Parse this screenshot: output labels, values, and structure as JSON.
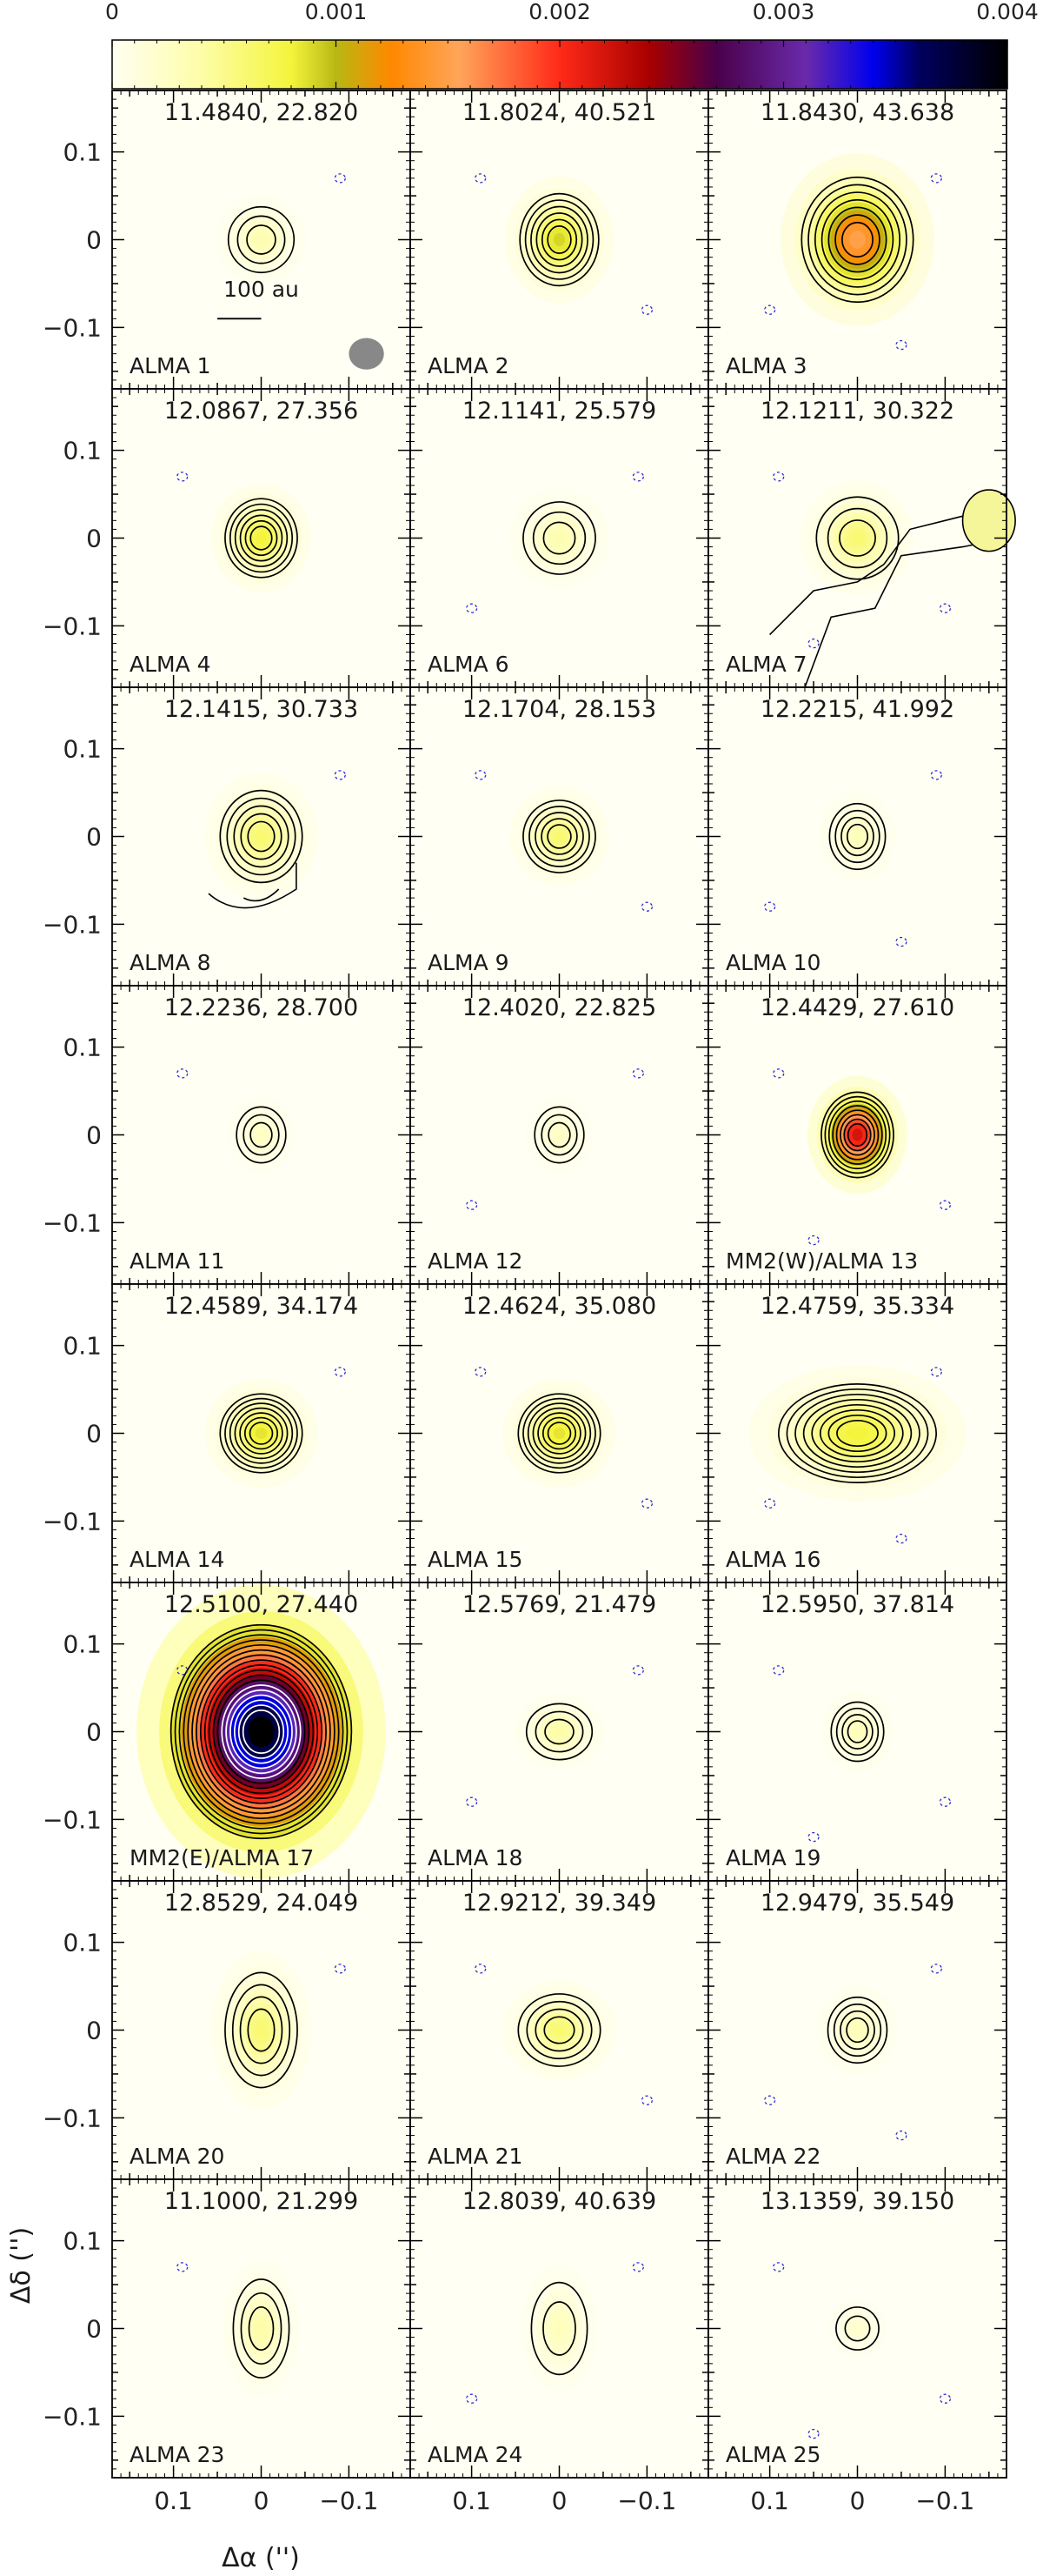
{
  "chart_data": {
    "type": "heatmap",
    "title": "",
    "colorbar": {
      "tick_labels": [
        "0",
        "0.001",
        "0.002",
        "0.003",
        "0.004"
      ],
      "range": [
        0,
        0.004
      ],
      "colors": [
        {
          "v": 0.0,
          "c": "#fffff2"
        },
        {
          "v": 0.0004,
          "c": "#fdfda8"
        },
        {
          "v": 0.0008,
          "c": "#f4f43c"
        },
        {
          "v": 0.001,
          "c": "#b8b814"
        },
        {
          "v": 0.00125,
          "c": "#ff8800"
        },
        {
          "v": 0.00155,
          "c": "#ffa55a"
        },
        {
          "v": 0.002,
          "c": "#ff2a18"
        },
        {
          "v": 0.0024,
          "c": "#a80000"
        },
        {
          "v": 0.0027,
          "c": "#4a004a"
        },
        {
          "v": 0.0031,
          "c": "#6a2aaa"
        },
        {
          "v": 0.0034,
          "c": "#0000ee"
        },
        {
          "v": 0.0036,
          "c": "#000060"
        },
        {
          "v": 0.004,
          "c": "#000000"
        }
      ]
    },
    "xlabel": "Δα ('')",
    "ylabel": "Δδ ('')",
    "xlim": [
      0.17,
      -0.17
    ],
    "ylim": [
      -0.17,
      0.17
    ],
    "x_tick_labels": [
      "0.1",
      "0",
      "−0.1"
    ],
    "x_tick_values": [
      0.1,
      0,
      -0.1
    ],
    "y_tick_labels": [
      "0.1",
      "0",
      "−0.1"
    ],
    "y_tick_values": [
      0.1,
      0,
      -0.1
    ],
    "scale_bar": {
      "label": "100 au",
      "length_arcsec": 0.05
    },
    "panels": [
      {
        "coord": "11.4840, 22.820",
        "label": "ALMA 1",
        "peak": 0.00035,
        "sx": 0.02,
        "sy": 0.02,
        "n_contours": 3,
        "beam": true,
        "scalebar": true
      },
      {
        "coord": "11.8024, 40.521",
        "label": "ALMA 2",
        "peak": 0.0009,
        "sx": 0.024,
        "sy": 0.028,
        "n_contours": 6
      },
      {
        "coord": "11.8430, 43.638",
        "label": "ALMA 3",
        "peak": 0.0015,
        "sx": 0.034,
        "sy": 0.038,
        "n_contours": 7
      },
      {
        "coord": "12.0867, 27.356",
        "label": "ALMA 4",
        "peak": 0.0008,
        "sx": 0.022,
        "sy": 0.024,
        "n_contours": 6
      },
      {
        "coord": "12.1141, 25.579",
        "label": "ALMA 6",
        "peak": 0.00035,
        "sx": 0.022,
        "sy": 0.022,
        "n_contours": 3
      },
      {
        "coord": "12.1211, 30.322",
        "label": "ALMA 7",
        "peak": 0.0006,
        "sx": 0.025,
        "sy": 0.025,
        "n_contours": 3,
        "extended": true
      },
      {
        "coord": "12.1415, 30.733",
        "label": "ALMA 8",
        "peak": 0.0006,
        "sx": 0.025,
        "sy": 0.028,
        "n_contours": 5,
        "arc": true
      },
      {
        "coord": "12.1704, 28.153",
        "label": "ALMA 9",
        "peak": 0.0006,
        "sx": 0.022,
        "sy": 0.022,
        "n_contours": 5
      },
      {
        "coord": "12.2215, 41.992",
        "label": "ALMA 10",
        "peak": 0.0003,
        "sx": 0.017,
        "sy": 0.02,
        "n_contours": 4
      },
      {
        "coord": "12.2236, 28.700",
        "label": "ALMA 11",
        "peak": 0.00025,
        "sx": 0.015,
        "sy": 0.017,
        "n_contours": 3
      },
      {
        "coord": "12.4020, 22.825",
        "label": "ALMA 12",
        "peak": 0.00025,
        "sx": 0.015,
        "sy": 0.017,
        "n_contours": 3
      },
      {
        "coord": "12.4429, 27.610",
        "label": "MM2(W)/ALMA 13",
        "peak": 0.0022,
        "sx": 0.022,
        "sy": 0.026,
        "n_contours": 8
      },
      {
        "coord": "12.4589, 34.174",
        "label": "ALMA 14",
        "peak": 0.00085,
        "sx": 0.025,
        "sy": 0.024,
        "n_contours": 7
      },
      {
        "coord": "12.4624, 35.080",
        "label": "ALMA 15",
        "peak": 0.00085,
        "sx": 0.025,
        "sy": 0.024,
        "n_contours": 7
      },
      {
        "coord": "12.4759, 35.334",
        "label": "ALMA 16",
        "peak": 0.0008,
        "sx": 0.048,
        "sy": 0.03,
        "n_contours": 8
      },
      {
        "coord": "12.5100, 27.440",
        "label": "MM2(E)/ALMA 17",
        "peak": 0.004,
        "sx": 0.055,
        "sy": 0.065,
        "n_contours": 18
      },
      {
        "coord": "12.5769, 21.479",
        "label": "ALMA 18",
        "peak": 0.0004,
        "sx": 0.02,
        "sy": 0.017,
        "n_contours": 3
      },
      {
        "coord": "12.5950, 37.814",
        "label": "ALMA 19",
        "peak": 0.0003,
        "sx": 0.016,
        "sy": 0.018,
        "n_contours": 4
      },
      {
        "coord": "12.8529, 24.049",
        "label": "ALMA 20",
        "peak": 0.0006,
        "sx": 0.022,
        "sy": 0.035,
        "n_contours": 4
      },
      {
        "coord": "12.9212, 39.349",
        "label": "ALMA 21",
        "peak": 0.0006,
        "sx": 0.025,
        "sy": 0.022,
        "n_contours": 4
      },
      {
        "coord": "12.9479, 35.549",
        "label": "ALMA 22",
        "peak": 0.0003,
        "sx": 0.018,
        "sy": 0.02,
        "n_contours": 4
      },
      {
        "coord": "11.1000, 21.299",
        "label": "ALMA 23",
        "peak": 0.0004,
        "sx": 0.017,
        "sy": 0.03,
        "n_contours": 3
      },
      {
        "coord": "12.8039, 40.639",
        "label": "ALMA 24",
        "peak": 0.0003,
        "sx": 0.017,
        "sy": 0.028,
        "n_contours": 2
      },
      {
        "coord": "13.1359, 39.150",
        "label": "ALMA 25",
        "peak": 0.0002,
        "sx": 0.013,
        "sy": 0.013,
        "n_contours": 2
      }
    ]
  }
}
